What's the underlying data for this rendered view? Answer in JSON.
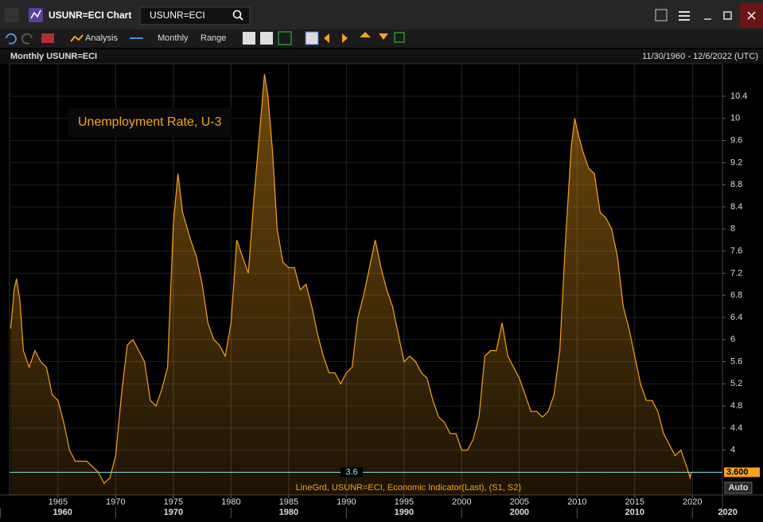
{
  "ui": {
    "window_title": "USUNR=ECI Chart",
    "search_text": "USUNR=ECI",
    "toolbar": [
      "Analysis",
      "Monthly",
      "Range"
    ],
    "auto_button": "Auto"
  },
  "chart_data": {
    "type": "area",
    "title": "Monthly USUNR=ECI",
    "date_range": "11/30/1960 - 12/6/2022 (UTC)",
    "annotation": "Unemployment Rate, U-3",
    "x": [
      1960.9,
      1961.2,
      1961.4,
      1961.7,
      1962.0,
      1962.5,
      1963.0,
      1963.5,
      1964.0,
      1964.5,
      1965.0,
      1965.5,
      1966.0,
      1966.5,
      1967.0,
      1967.5,
      1968.0,
      1968.5,
      1969.0,
      1969.5,
      1970.0,
      1970.5,
      1971.0,
      1971.5,
      1972.0,
      1972.5,
      1973.0,
      1973.5,
      1974.0,
      1974.5,
      1975.0,
      1975.4,
      1975.8,
      1976.5,
      1977.0,
      1977.5,
      1978.0,
      1978.5,
      1979.0,
      1979.5,
      1980.0,
      1980.5,
      1981.0,
      1981.5,
      1982.0,
      1982.5,
      1982.9,
      1983.2,
      1983.6,
      1984.0,
      1984.5,
      1985.0,
      1985.5,
      1986.0,
      1986.5,
      1987.0,
      1987.5,
      1988.0,
      1988.5,
      1989.0,
      1989.5,
      1990.0,
      1990.5,
      1991.0,
      1991.5,
      1992.0,
      1992.5,
      1993.0,
      1993.5,
      1994.0,
      1994.5,
      1995.0,
      1995.5,
      1996.0,
      1996.5,
      1997.0,
      1997.5,
      1998.0,
      1998.5,
      1999.0,
      1999.5,
      2000.0,
      2000.5,
      2001.0,
      2001.5,
      2002.0,
      2002.5,
      2003.0,
      2003.5,
      2004.0,
      2004.5,
      2005.0,
      2005.5,
      2006.0,
      2006.5,
      2007.0,
      2007.5,
      2008.0,
      2008.5,
      2009.0,
      2009.5,
      2009.8,
      2010.0,
      2010.5,
      2011.0,
      2011.5,
      2012.0,
      2012.5,
      2013.0,
      2013.5,
      2014.0,
      2014.5,
      2015.0,
      2015.5,
      2016.0,
      2016.5,
      2017.0,
      2017.5,
      2018.0,
      2018.5,
      2019.0,
      2019.5,
      2019.8,
      2019.9
    ],
    "series": [
      {
        "name": "LineGrd, USUNR=ECI, Economic Indicator(Last), (S1, S2)",
        "color": "#f7a21b",
        "values": [
          6.2,
          6.9,
          7.1,
          6.7,
          5.8,
          5.5,
          5.8,
          5.6,
          5.5,
          5.0,
          4.9,
          4.5,
          4.0,
          3.8,
          3.8,
          3.8,
          3.7,
          3.6,
          3.4,
          3.5,
          3.9,
          5.0,
          5.9,
          6.0,
          5.8,
          5.6,
          4.9,
          4.8,
          5.1,
          5.5,
          8.1,
          9.0,
          8.3,
          7.8,
          7.5,
          7.0,
          6.3,
          6.0,
          5.9,
          5.7,
          6.3,
          7.8,
          7.5,
          7.2,
          8.6,
          9.8,
          10.8,
          10.4,
          9.4,
          8.0,
          7.4,
          7.3,
          7.3,
          6.9,
          7.0,
          6.6,
          6.1,
          5.7,
          5.4,
          5.4,
          5.2,
          5.4,
          5.5,
          6.4,
          6.8,
          7.3,
          7.8,
          7.3,
          6.9,
          6.6,
          6.1,
          5.6,
          5.7,
          5.6,
          5.4,
          5.3,
          4.9,
          4.6,
          4.5,
          4.3,
          4.3,
          4.0,
          4.0,
          4.2,
          4.6,
          5.7,
          5.8,
          5.8,
          6.3,
          5.7,
          5.5,
          5.3,
          5.0,
          4.7,
          4.7,
          4.6,
          4.7,
          5.0,
          5.8,
          7.8,
          9.5,
          10.0,
          9.8,
          9.4,
          9.1,
          9.0,
          8.3,
          8.2,
          8.0,
          7.5,
          6.6,
          6.2,
          5.7,
          5.2,
          4.9,
          4.9,
          4.7,
          4.3,
          4.1,
          3.9,
          4.0,
          3.7,
          3.5,
          3.6
        ]
      }
    ],
    "xlim": [
      1960.8,
      2022.6
    ],
    "xticks": [
      1965,
      1970,
      1975,
      1980,
      1985,
      1990,
      1995,
      2000,
      2005,
      2010,
      2015,
      2020
    ],
    "decade_labels": [
      1960,
      1970,
      1980,
      1990,
      2000,
      2010,
      2020
    ],
    "ylim": [
      3.19,
      10.99
    ],
    "yticks": [
      4,
      4.4,
      4.8,
      5.2,
      5.6,
      6,
      6.4,
      6.8,
      7.2,
      7.6,
      8,
      8.4,
      8.8,
      9.2,
      9.6,
      10,
      10.4
    ],
    "hline": 3.6,
    "last_value": {
      "value": 3.6,
      "label": "3.600"
    },
    "grid": true
  }
}
